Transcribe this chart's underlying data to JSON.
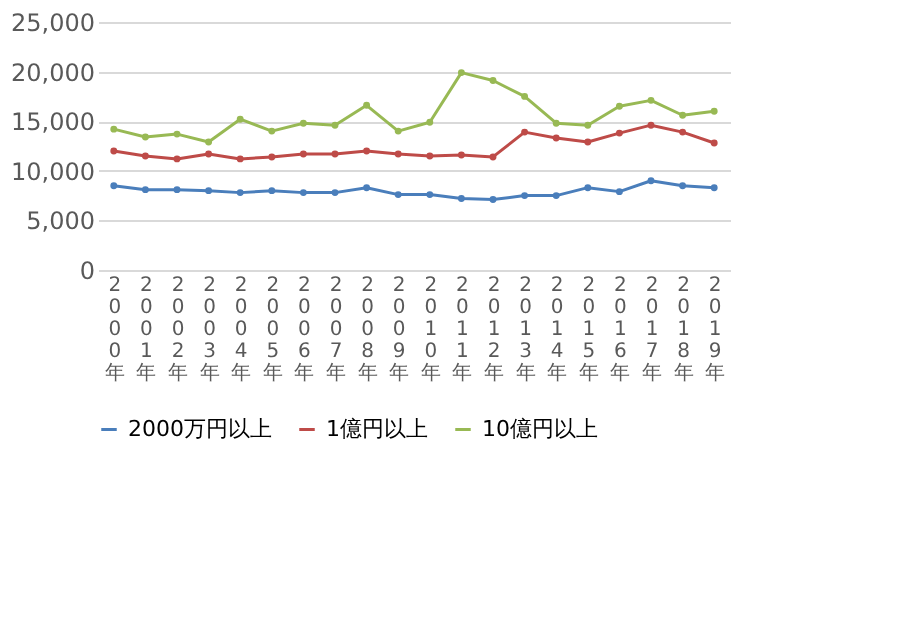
{
  "chart_data": {
    "type": "line",
    "categories": [
      "2000年",
      "2001年",
      "2002年",
      "2003年",
      "2004年",
      "2005年",
      "2006年",
      "2007年",
      "2008年",
      "2009年",
      "2010年",
      "2011年",
      "2012年",
      "2013年",
      "2014年",
      "2015年",
      "2016年",
      "2017年",
      "2018年",
      "2019年"
    ],
    "series": [
      {
        "name": "2000万円以上",
        "color": "#4a7ebb",
        "values": [
          8500,
          8100,
          8100,
          8000,
          7800,
          8000,
          7800,
          7800,
          8300,
          7600,
          7600,
          7200,
          7100,
          7500,
          7500,
          8300,
          7900,
          9000,
          8500,
          8300
        ]
      },
      {
        "name": "1億円以上",
        "color": "#be4b48",
        "values": [
          12000,
          11500,
          11200,
          11700,
          11200,
          11400,
          11700,
          11700,
          12000,
          11700,
          11500,
          11600,
          11400,
          13900,
          13300,
          12900,
          13800,
          14600,
          13900,
          12800
        ]
      },
      {
        "name": "10億円以上",
        "color": "#98b954",
        "values": [
          14200,
          13400,
          13700,
          12900,
          15200,
          14000,
          14800,
          14600,
          16600,
          14000,
          14900,
          19900,
          19100,
          17500,
          14800,
          14600,
          16500,
          17100,
          15600,
          16000
        ]
      }
    ],
    "ylim": [
      0,
      25000
    ],
    "yticks": [
      0,
      {
        "value": 5000,
        "label": "5,000"
      },
      {
        "value": 10000,
        "label": "10,000"
      },
      {
        "value": 15000,
        "label": "15,000"
      },
      {
        "value": 20000,
        "label": "20,000"
      },
      {
        "value": 25000,
        "label": "25,000"
      }
    ],
    "grid": "y",
    "legend": "bottom",
    "marker": "circle",
    "line_style": "solid"
  }
}
